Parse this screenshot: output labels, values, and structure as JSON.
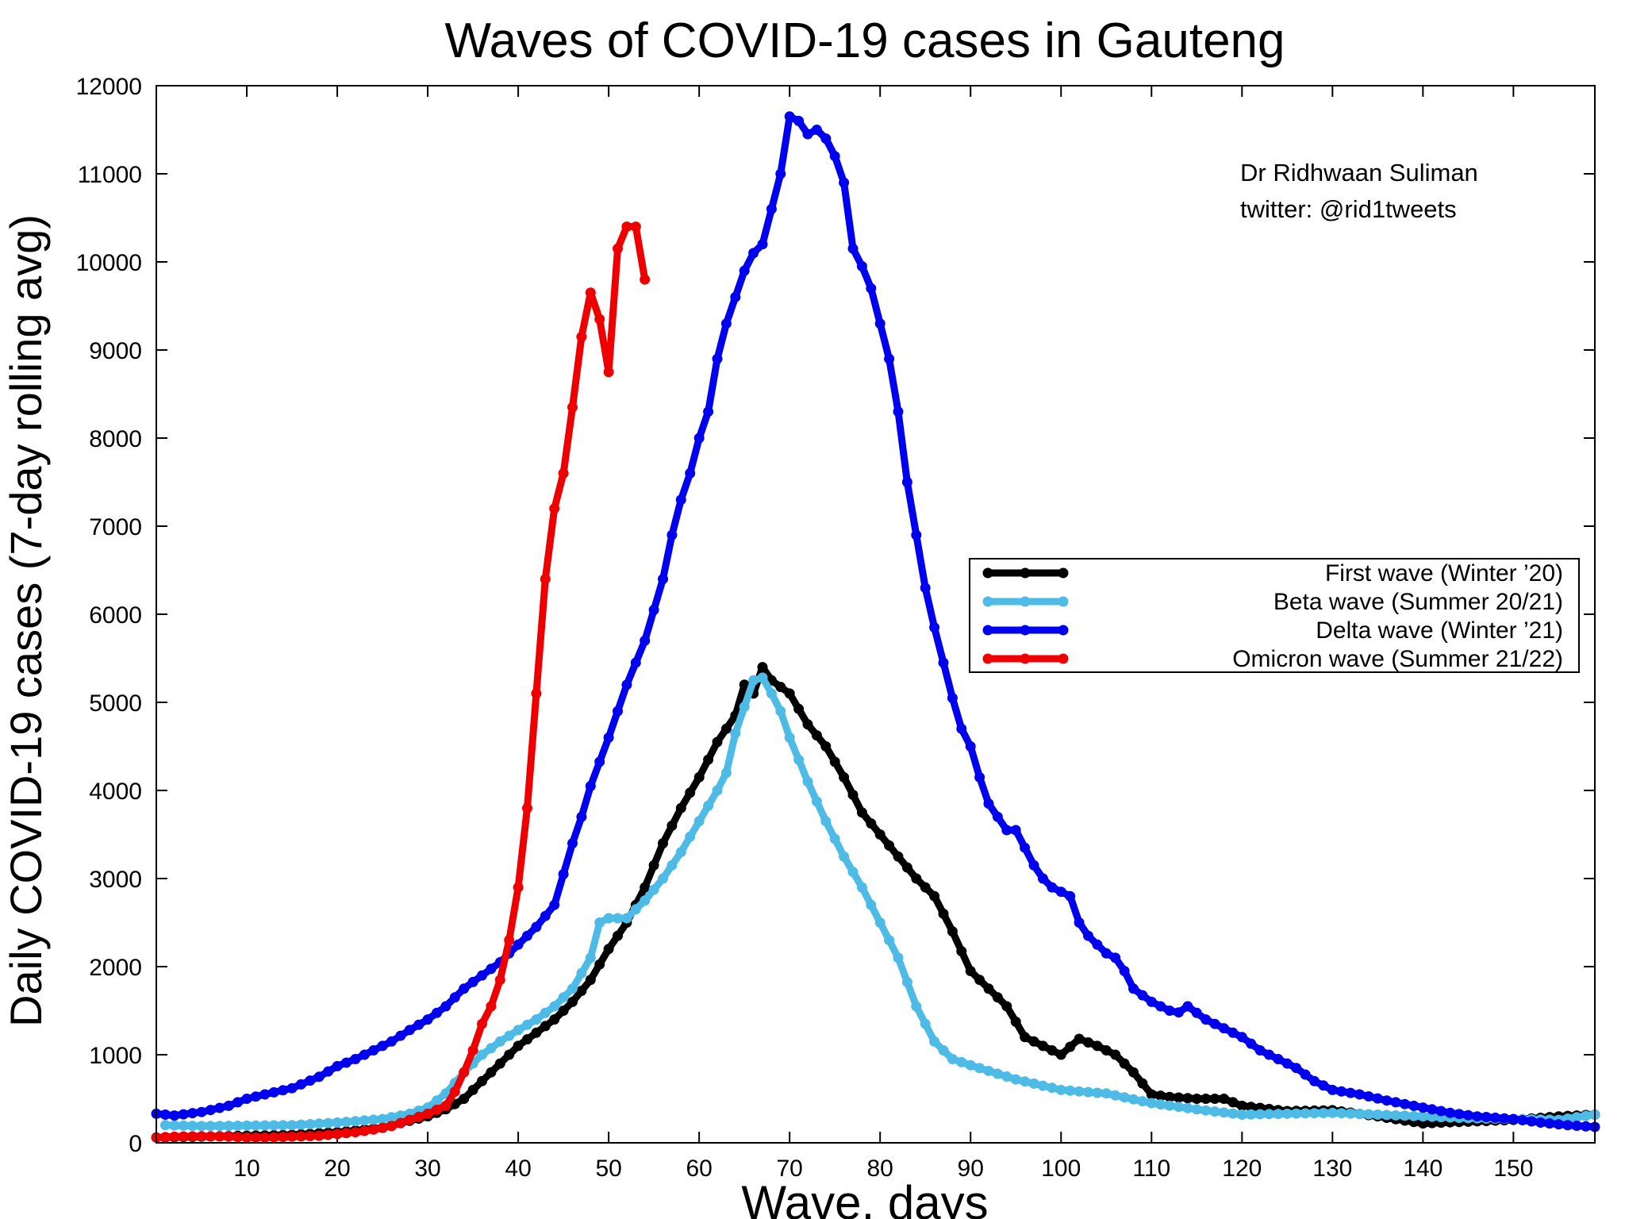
{
  "chart_data": {
    "type": "line",
    "title": "Waves of COVID-19 cases in Gauteng",
    "xlabel": "Wave, days",
    "ylabel": "Daily COVID-19 cases (7-day rolling avg)",
    "xlim": [
      0,
      159
    ],
    "ylim": [
      0,
      12000
    ],
    "x_ticks": [
      10,
      20,
      30,
      40,
      50,
      60,
      70,
      80,
      90,
      100,
      110,
      120,
      130,
      140,
      150
    ],
    "y_ticks": [
      0,
      1000,
      2000,
      3000,
      4000,
      5000,
      6000,
      7000,
      8000,
      9000,
      10000,
      11000,
      12000
    ],
    "grid": false,
    "legend_position": "right",
    "annotation_lines": [
      "Dr Ridhwaan Suliman",
      "twitter: @rid1tweets"
    ],
    "series": [
      {
        "name": "First wave (Winter ’20)",
        "color": "#000000",
        "points": [
          [
            0,
            60
          ],
          [
            5,
            70
          ],
          [
            10,
            80
          ],
          [
            15,
            90
          ],
          [
            20,
            120
          ],
          [
            25,
            170
          ],
          [
            28,
            250
          ],
          [
            30,
            300
          ],
          [
            32,
            380
          ],
          [
            34,
            500
          ],
          [
            36,
            700
          ],
          [
            38,
            900
          ],
          [
            40,
            1100
          ],
          [
            42,
            1250
          ],
          [
            44,
            1400
          ],
          [
            46,
            1600
          ],
          [
            48,
            1850
          ],
          [
            50,
            2200
          ],
          [
            52,
            2500
          ],
          [
            54,
            2900
          ],
          [
            56,
            3400
          ],
          [
            58,
            3800
          ],
          [
            60,
            4150
          ],
          [
            62,
            4550
          ],
          [
            64,
            4850
          ],
          [
            65,
            5200
          ],
          [
            66,
            5100
          ],
          [
            67,
            5400
          ],
          [
            68,
            5250
          ],
          [
            70,
            5100
          ],
          [
            72,
            4750
          ],
          [
            74,
            4500
          ],
          [
            76,
            4150
          ],
          [
            78,
            3750
          ],
          [
            80,
            3500
          ],
          [
            82,
            3250
          ],
          [
            84,
            3000
          ],
          [
            86,
            2800
          ],
          [
            88,
            2400
          ],
          [
            90,
            1950
          ],
          [
            92,
            1750
          ],
          [
            94,
            1550
          ],
          [
            96,
            1200
          ],
          [
            98,
            1100
          ],
          [
            100,
            1000
          ],
          [
            102,
            1180
          ],
          [
            104,
            1100
          ],
          [
            106,
            1000
          ],
          [
            108,
            800
          ],
          [
            110,
            550
          ],
          [
            112,
            520
          ],
          [
            115,
            500
          ],
          [
            118,
            500
          ],
          [
            120,
            420
          ],
          [
            125,
            360
          ],
          [
            130,
            370
          ],
          [
            135,
            300
          ],
          [
            140,
            220
          ],
          [
            145,
            240
          ],
          [
            150,
            260
          ],
          [
            155,
            300
          ],
          [
            159,
            320
          ]
        ]
      },
      {
        "name": "Beta wave (Summer 20/21)",
        "color": "#4dbbe6",
        "points": [
          [
            1,
            200
          ],
          [
            5,
            190
          ],
          [
            10,
            195
          ],
          [
            15,
            200
          ],
          [
            20,
            230
          ],
          [
            25,
            270
          ],
          [
            28,
            330
          ],
          [
            30,
            400
          ],
          [
            32,
            560
          ],
          [
            34,
            800
          ],
          [
            36,
            1000
          ],
          [
            38,
            1150
          ],
          [
            40,
            1280
          ],
          [
            42,
            1400
          ],
          [
            44,
            1550
          ],
          [
            46,
            1750
          ],
          [
            48,
            2100
          ],
          [
            49,
            2500
          ],
          [
            50,
            2550
          ],
          [
            52,
            2550
          ],
          [
            54,
            2750
          ],
          [
            56,
            3000
          ],
          [
            58,
            3300
          ],
          [
            60,
            3650
          ],
          [
            62,
            4000
          ],
          [
            63,
            4200
          ],
          [
            64,
            4650
          ],
          [
            65,
            4950
          ],
          [
            66,
            5250
          ],
          [
            67,
            5280
          ],
          [
            68,
            5100
          ],
          [
            69,
            4900
          ],
          [
            70,
            4600
          ],
          [
            72,
            4100
          ],
          [
            74,
            3650
          ],
          [
            76,
            3250
          ],
          [
            78,
            2900
          ],
          [
            80,
            2500
          ],
          [
            82,
            2100
          ],
          [
            84,
            1550
          ],
          [
            86,
            1150
          ],
          [
            88,
            950
          ],
          [
            90,
            880
          ],
          [
            95,
            720
          ],
          [
            100,
            600
          ],
          [
            105,
            560
          ],
          [
            110,
            450
          ],
          [
            115,
            380
          ],
          [
            120,
            320
          ],
          [
            125,
            330
          ],
          [
            130,
            340
          ],
          [
            135,
            320
          ],
          [
            140,
            300
          ],
          [
            145,
            280
          ],
          [
            150,
            270
          ],
          [
            155,
            260
          ],
          [
            159,
            320
          ]
        ]
      },
      {
        "name": "Delta wave (Winter ’21)",
        "color": "#0000f0",
        "points": [
          [
            0,
            330
          ],
          [
            2,
            310
          ],
          [
            5,
            350
          ],
          [
            8,
            420
          ],
          [
            10,
            500
          ],
          [
            12,
            550
          ],
          [
            15,
            620
          ],
          [
            18,
            750
          ],
          [
            20,
            870
          ],
          [
            22,
            950
          ],
          [
            24,
            1050
          ],
          [
            26,
            1150
          ],
          [
            28,
            1280
          ],
          [
            30,
            1400
          ],
          [
            32,
            1550
          ],
          [
            34,
            1750
          ],
          [
            36,
            1900
          ],
          [
            38,
            2050
          ],
          [
            40,
            2250
          ],
          [
            42,
            2450
          ],
          [
            44,
            2700
          ],
          [
            45,
            3050
          ],
          [
            46,
            3400
          ],
          [
            47,
            3700
          ],
          [
            48,
            4050
          ],
          [
            50,
            4600
          ],
          [
            52,
            5200
          ],
          [
            54,
            5700
          ],
          [
            55,
            6050
          ],
          [
            56,
            6400
          ],
          [
            57,
            6900
          ],
          [
            58,
            7300
          ],
          [
            59,
            7600
          ],
          [
            60,
            8000
          ],
          [
            61,
            8300
          ],
          [
            62,
            8900
          ],
          [
            63,
            9300
          ],
          [
            64,
            9600
          ],
          [
            65,
            9900
          ],
          [
            66,
            10100
          ],
          [
            67,
            10200
          ],
          [
            68,
            10600
          ],
          [
            69,
            11000
          ],
          [
            70,
            11650
          ],
          [
            71,
            11600
          ],
          [
            72,
            11450
          ],
          [
            73,
            11500
          ],
          [
            74,
            11400
          ],
          [
            75,
            11200
          ],
          [
            76,
            10900
          ],
          [
            77,
            10150
          ],
          [
            78,
            9950
          ],
          [
            79,
            9700
          ],
          [
            80,
            9300
          ],
          [
            81,
            8900
          ],
          [
            82,
            8300
          ],
          [
            83,
            7500
          ],
          [
            84,
            6900
          ],
          [
            85,
            6300
          ],
          [
            86,
            5850
          ],
          [
            87,
            5450
          ],
          [
            88,
            5050
          ],
          [
            89,
            4700
          ],
          [
            90,
            4500
          ],
          [
            91,
            4150
          ],
          [
            92,
            3850
          ],
          [
            93,
            3700
          ],
          [
            94,
            3550
          ],
          [
            95,
            3550
          ],
          [
            96,
            3350
          ],
          [
            97,
            3150
          ],
          [
            98,
            3000
          ],
          [
            99,
            2900
          ],
          [
            100,
            2850
          ],
          [
            101,
            2800
          ],
          [
            102,
            2500
          ],
          [
            103,
            2350
          ],
          [
            104,
            2250
          ],
          [
            105,
            2150
          ],
          [
            106,
            2100
          ],
          [
            107,
            1950
          ],
          [
            108,
            1750
          ],
          [
            110,
            1600
          ],
          [
            112,
            1500
          ],
          [
            113,
            1480
          ],
          [
            114,
            1550
          ],
          [
            116,
            1400
          ],
          [
            118,
            1300
          ],
          [
            120,
            1200
          ],
          [
            122,
            1050
          ],
          [
            124,
            950
          ],
          [
            126,
            850
          ],
          [
            128,
            700
          ],
          [
            130,
            600
          ],
          [
            133,
            550
          ],
          [
            136,
            480
          ],
          [
            140,
            400
          ],
          [
            143,
            340
          ],
          [
            146,
            300
          ],
          [
            150,
            270
          ],
          [
            153,
            230
          ],
          [
            156,
            200
          ],
          [
            159,
            180
          ]
        ]
      },
      {
        "name": "Omicron wave (Summer 21/22)",
        "color": "#ee0000",
        "points": [
          [
            0,
            60
          ],
          [
            2,
            70
          ],
          [
            5,
            75
          ],
          [
            8,
            70
          ],
          [
            10,
            60
          ],
          [
            12,
            60
          ],
          [
            15,
            70
          ],
          [
            18,
            80
          ],
          [
            20,
            100
          ],
          [
            22,
            120
          ],
          [
            24,
            150
          ],
          [
            26,
            190
          ],
          [
            28,
            260
          ],
          [
            30,
            330
          ],
          [
            32,
            420
          ],
          [
            33,
            580
          ],
          [
            34,
            800
          ],
          [
            35,
            1050
          ],
          [
            36,
            1350
          ],
          [
            37,
            1550
          ],
          [
            38,
            1850
          ],
          [
            39,
            2300
          ],
          [
            40,
            2900
          ],
          [
            41,
            3800
          ],
          [
            42,
            5100
          ],
          [
            43,
            6400
          ],
          [
            44,
            7200
          ],
          [
            45,
            7600
          ],
          [
            46,
            8350
          ],
          [
            47,
            9150
          ],
          [
            48,
            9650
          ],
          [
            49,
            9350
          ],
          [
            50,
            8750
          ],
          [
            51,
            10150
          ],
          [
            52,
            10400
          ],
          [
            53,
            10400
          ],
          [
            54,
            9800
          ]
        ]
      }
    ]
  }
}
